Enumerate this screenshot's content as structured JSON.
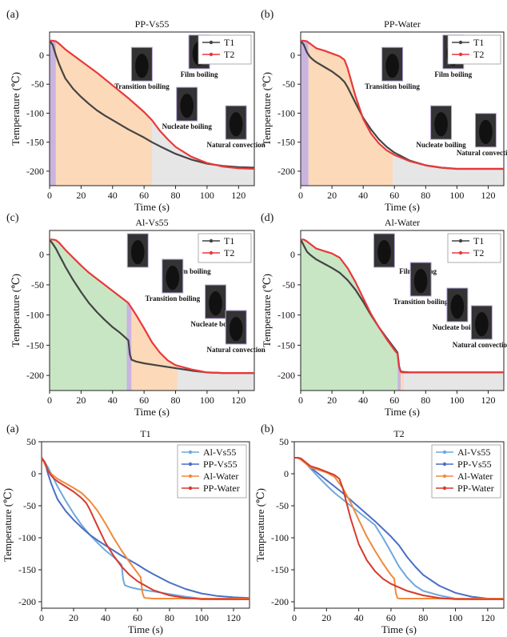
{
  "chart_data": [
    {
      "type": "line",
      "panel_label": "(a)",
      "title": "PP-Vs55",
      "xlabel": "Time (s)",
      "ylabel": "Temperature (℃)",
      "xlim": [
        0,
        130
      ],
      "ylim": [
        -225,
        40
      ],
      "xticks": [
        0,
        20,
        40,
        60,
        80,
        100,
        120
      ],
      "yticks": [
        0,
        -50,
        -100,
        -150,
        -200
      ],
      "legend_position": "top-right",
      "series": [
        {
          "name": "T1",
          "color": "#444444",
          "x": [
            0,
            2,
            4,
            6,
            8,
            10,
            15,
            20,
            25,
            30,
            35,
            40,
            50,
            60,
            65,
            70,
            80,
            90,
            100,
            110,
            120,
            130
          ],
          "y": [
            25,
            18,
            0,
            -15,
            -28,
            -40,
            -58,
            -72,
            -84,
            -95,
            -104,
            -112,
            -128,
            -142,
            -150,
            -157,
            -170,
            -180,
            -187,
            -191,
            -193,
            -194
          ]
        },
        {
          "name": "T2",
          "color": "#e8393a",
          "x": [
            0,
            2,
            4,
            6,
            8,
            10,
            20,
            30,
            40,
            50,
            60,
            65,
            70,
            75,
            80,
            90,
            100,
            110,
            120,
            130
          ],
          "y": [
            25,
            25,
            24,
            20,
            15,
            10,
            -10,
            -30,
            -52,
            -74,
            -98,
            -112,
            -130,
            -145,
            -158,
            -175,
            -186,
            -192,
            -195,
            -196
          ]
        }
      ],
      "regions": [
        {
          "from": 0,
          "to": 4,
          "color": "#c9b4e0"
        },
        {
          "from": 4,
          "to": 65,
          "color": "#fcd9b8"
        },
        {
          "from": 65,
          "to": 130,
          "color": "#e6e6e6"
        }
      ],
      "annotations": [
        "Transition boiling",
        "Film boiling",
        "Nucleate boiling",
        "Natural convection"
      ]
    },
    {
      "type": "line",
      "panel_label": "(b)",
      "title": "PP-Water",
      "xlabel": "Time (s)",
      "ylabel": "Temperature (℃)",
      "xlim": [
        0,
        130
      ],
      "ylim": [
        -225,
        40
      ],
      "xticks": [
        0,
        20,
        40,
        60,
        80,
        100,
        120
      ],
      "yticks": [
        0,
        -50,
        -100,
        -150,
        -200
      ],
      "legend_position": "top-right",
      "series": [
        {
          "name": "T1",
          "color": "#444444",
          "x": [
            0,
            2,
            4,
            6,
            8,
            10,
            15,
            20,
            25,
            28,
            30,
            35,
            40,
            45,
            50,
            55,
            60,
            70,
            80,
            90,
            100,
            110,
            130
          ],
          "y": [
            25,
            18,
            5,
            -3,
            -8,
            -12,
            -20,
            -28,
            -38,
            -46,
            -55,
            -82,
            -108,
            -128,
            -145,
            -158,
            -168,
            -182,
            -190,
            -194,
            -196,
            -196,
            -196
          ]
        },
        {
          "name": "T2",
          "color": "#e8393a",
          "x": [
            0,
            2,
            4,
            6,
            8,
            10,
            15,
            20,
            25,
            28,
            30,
            35,
            40,
            45,
            50,
            55,
            60,
            70,
            80,
            90,
            100,
            110,
            130
          ],
          "y": [
            25,
            25,
            24,
            20,
            16,
            12,
            8,
            3,
            -2,
            -8,
            -22,
            -70,
            -110,
            -135,
            -152,
            -164,
            -172,
            -183,
            -190,
            -194,
            -196,
            -196,
            -196
          ]
        }
      ],
      "regions": [
        {
          "from": 0,
          "to": 5,
          "color": "#c9b4e0"
        },
        {
          "from": 5,
          "to": 59,
          "color": "#fcd9b8"
        },
        {
          "from": 59,
          "to": 130,
          "color": "#e6e6e6"
        }
      ],
      "annotations": [
        "Transition boiling",
        "Film boiling",
        "Nucleate boiling",
        "Natural convection"
      ]
    },
    {
      "type": "line",
      "panel_label": "(c)",
      "title": "Al-Vs55",
      "xlabel": "Time (s)",
      "ylabel": "Temperature (℃)",
      "xlim": [
        0,
        130
      ],
      "ylim": [
        -225,
        40
      ],
      "xticks": [
        0,
        20,
        40,
        60,
        80,
        100,
        120
      ],
      "yticks": [
        0,
        -50,
        -100,
        -150,
        -200
      ],
      "legend_position": "top-right",
      "series": [
        {
          "name": "T1",
          "color": "#444444",
          "x": [
            0,
            2,
            4,
            6,
            8,
            10,
            15,
            20,
            25,
            30,
            35,
            40,
            45,
            48,
            50,
            51,
            52,
            55,
            60,
            70,
            80,
            90,
            100,
            110,
            120,
            130
          ],
          "y": [
            25,
            18,
            10,
            0,
            -10,
            -20,
            -42,
            -62,
            -80,
            -95,
            -108,
            -120,
            -130,
            -137,
            -142,
            -165,
            -174,
            -177,
            -180,
            -184,
            -188,
            -192,
            -195,
            -196,
            -196,
            -196
          ]
        },
        {
          "name": "T2",
          "color": "#e8393a",
          "x": [
            0,
            2,
            4,
            6,
            8,
            10,
            15,
            20,
            25,
            30,
            35,
            40,
            45,
            50,
            55,
            60,
            65,
            70,
            75,
            80,
            90,
            100,
            110,
            120,
            130
          ],
          "y": [
            25,
            25,
            24,
            20,
            14,
            8,
            -5,
            -18,
            -30,
            -40,
            -50,
            -60,
            -70,
            -80,
            -100,
            -122,
            -145,
            -162,
            -175,
            -183,
            -190,
            -195,
            -196,
            -196,
            -196
          ]
        }
      ],
      "regions": [
        {
          "from": 0,
          "to": 49,
          "color": "#c8e6c4"
        },
        {
          "from": 49,
          "to": 52,
          "color": "#c9b4e0"
        },
        {
          "from": 52,
          "to": 81,
          "color": "#fcd9b8"
        },
        {
          "from": 81,
          "to": 130,
          "color": "#e6e6e6"
        }
      ],
      "annotations": [
        "Film boiling",
        "Transition boiling",
        "Nucleate boiling",
        "Natural convection"
      ]
    },
    {
      "type": "line",
      "panel_label": "(d)",
      "title": "Al-Water",
      "xlabel": "Time (s)",
      "ylabel": "Temperature (℃)",
      "xlim": [
        0,
        130
      ],
      "ylim": [
        -225,
        40
      ],
      "xticks": [
        0,
        20,
        40,
        60,
        80,
        100,
        120
      ],
      "yticks": [
        0,
        -50,
        -100,
        -150,
        -200
      ],
      "legend_position": "top-right",
      "series": [
        {
          "name": "T1",
          "color": "#444444",
          "x": [
            0,
            2,
            4,
            6,
            10,
            15,
            20,
            25,
            30,
            35,
            40,
            45,
            50,
            55,
            60,
            62,
            63,
            64,
            65,
            70,
            80,
            90,
            100,
            110,
            120,
            130
          ],
          "y": [
            25,
            15,
            5,
            0,
            -8,
            -15,
            -22,
            -30,
            -42,
            -58,
            -78,
            -100,
            -120,
            -138,
            -155,
            -162,
            -185,
            -193,
            -194,
            -195,
            -195,
            -195,
            -195,
            -195,
            -195,
            -195
          ]
        },
        {
          "name": "T2",
          "color": "#e8393a",
          "x": [
            0,
            2,
            4,
            6,
            10,
            15,
            20,
            25,
            30,
            35,
            40,
            45,
            50,
            55,
            60,
            62,
            63,
            64,
            65,
            70,
            80,
            90,
            100,
            110,
            120,
            130
          ],
          "y": [
            25,
            25,
            22,
            18,
            10,
            6,
            2,
            -5,
            -22,
            -45,
            -72,
            -98,
            -120,
            -140,
            -158,
            -164,
            -186,
            -194,
            -195,
            -195,
            -195,
            -195,
            -195,
            -195,
            -195,
            -195
          ]
        }
      ],
      "regions": [
        {
          "from": 0,
          "to": 62,
          "color": "#c8e6c4"
        },
        {
          "from": 62,
          "to": 64,
          "color": "#c9b4e0"
        },
        {
          "from": 64,
          "to": 66,
          "color": "#fcd9b8"
        },
        {
          "from": 66,
          "to": 130,
          "color": "#e6e6e6"
        }
      ],
      "annotations": [
        "Film boiling",
        "Transition boiling",
        "Nucleate boiling",
        "Natural convection"
      ]
    },
    {
      "type": "line",
      "panel_label": "(a)",
      "title": "T1",
      "xlabel": "Time (s)",
      "ylabel": "Temperature (℃)",
      "xlim": [
        0,
        130
      ],
      "ylim": [
        -210,
        50
      ],
      "xticks": [
        0,
        20,
        40,
        60,
        80,
        100,
        120
      ],
      "yticks": [
        50,
        0,
        -50,
        -100,
        -150,
        -200
      ],
      "legend_position": "top-right",
      "series": [
        {
          "name": "Al-Vs55",
          "color": "#6fa8dc",
          "x": [
            0,
            2,
            4,
            6,
            8,
            10,
            15,
            20,
            25,
            30,
            35,
            40,
            45,
            48,
            50,
            51,
            52,
            55,
            60,
            70,
            80,
            90,
            100,
            110,
            120,
            130
          ],
          "y": [
            25,
            18,
            10,
            0,
            -10,
            -20,
            -42,
            -62,
            -80,
            -95,
            -108,
            -120,
            -130,
            -137,
            -142,
            -165,
            -174,
            -177,
            -180,
            -184,
            -188,
            -192,
            -195,
            -196,
            -196,
            -196
          ]
        },
        {
          "name": "PP-Vs55",
          "color": "#4a6fc4",
          "x": [
            0,
            2,
            4,
            6,
            8,
            10,
            15,
            20,
            25,
            30,
            35,
            40,
            50,
            60,
            65,
            70,
            80,
            90,
            100,
            110,
            120,
            130
          ],
          "y": [
            25,
            18,
            0,
            -15,
            -28,
            -40,
            -58,
            -72,
            -84,
            -95,
            -104,
            -112,
            -128,
            -142,
            -150,
            -157,
            -170,
            -180,
            -187,
            -191,
            -193,
            -194
          ]
        },
        {
          "name": "Al-Water",
          "color": "#f08a3c",
          "x": [
            0,
            2,
            4,
            6,
            10,
            15,
            20,
            25,
            30,
            35,
            40,
            45,
            50,
            55,
            60,
            62,
            63,
            64,
            65,
            70,
            80,
            90,
            100,
            110,
            120,
            130
          ],
          "y": [
            25,
            15,
            5,
            0,
            -8,
            -15,
            -22,
            -30,
            -42,
            -58,
            -78,
            -100,
            -120,
            -138,
            -155,
            -162,
            -185,
            -193,
            -194,
            -195,
            -195,
            -195,
            -195,
            -195,
            -195,
            -195
          ]
        },
        {
          "name": "PP-Water",
          "color": "#d63a2e",
          "x": [
            0,
            2,
            4,
            6,
            8,
            10,
            15,
            20,
            25,
            28,
            30,
            35,
            40,
            45,
            50,
            55,
            60,
            70,
            80,
            90,
            100,
            110,
            130
          ],
          "y": [
            25,
            18,
            5,
            -3,
            -8,
            -12,
            -20,
            -28,
            -38,
            -46,
            -55,
            -82,
            -108,
            -128,
            -145,
            -158,
            -168,
            -182,
            -190,
            -194,
            -196,
            -196,
            -196
          ]
        }
      ]
    },
    {
      "type": "line",
      "panel_label": "(b)",
      "title": "T2",
      "xlabel": "Time (s)",
      "ylabel": "Temperature (℃)",
      "xlim": [
        0,
        130
      ],
      "ylim": [
        -210,
        50
      ],
      "xticks": [
        0,
        20,
        40,
        60,
        80,
        100,
        120
      ],
      "yticks": [
        50,
        0,
        -50,
        -100,
        -150,
        -200
      ],
      "legend_position": "top-right",
      "series": [
        {
          "name": "Al-Vs55",
          "color": "#6fa8dc",
          "x": [
            0,
            2,
            4,
            6,
            8,
            10,
            15,
            20,
            25,
            30,
            35,
            40,
            45,
            50,
            55,
            60,
            65,
            70,
            75,
            80,
            90,
            100,
            110,
            120,
            130
          ],
          "y": [
            25,
            25,
            24,
            20,
            14,
            8,
            -5,
            -18,
            -30,
            -40,
            -50,
            -60,
            -70,
            -80,
            -100,
            -122,
            -145,
            -162,
            -175,
            -183,
            -190,
            -195,
            -196,
            -196,
            -196
          ]
        },
        {
          "name": "PP-Vs55",
          "color": "#4a6fc4",
          "x": [
            0,
            2,
            4,
            6,
            8,
            10,
            20,
            30,
            40,
            50,
            60,
            65,
            70,
            75,
            80,
            90,
            100,
            110,
            120,
            130
          ],
          "y": [
            25,
            25,
            24,
            20,
            15,
            10,
            -10,
            -30,
            -52,
            -74,
            -98,
            -112,
            -130,
            -145,
            -158,
            -175,
            -186,
            -192,
            -195,
            -196
          ]
        },
        {
          "name": "Al-Water",
          "color": "#f08a3c",
          "x": [
            0,
            2,
            4,
            6,
            10,
            15,
            20,
            25,
            30,
            35,
            40,
            45,
            50,
            55,
            60,
            62,
            63,
            64,
            65,
            70,
            80,
            90,
            100,
            110,
            120,
            130
          ],
          "y": [
            25,
            25,
            22,
            18,
            10,
            6,
            2,
            -5,
            -22,
            -45,
            -72,
            -98,
            -120,
            -140,
            -158,
            -164,
            -186,
            -194,
            -195,
            -195,
            -195,
            -195,
            -195,
            -195,
            -195,
            -195
          ]
        },
        {
          "name": "PP-Water",
          "color": "#d63a2e",
          "x": [
            0,
            2,
            4,
            6,
            8,
            10,
            15,
            20,
            25,
            28,
            30,
            35,
            40,
            45,
            50,
            55,
            60,
            70,
            80,
            90,
            100,
            110,
            130
          ],
          "y": [
            25,
            25,
            24,
            20,
            16,
            12,
            8,
            3,
            -2,
            -8,
            -22,
            -70,
            -110,
            -135,
            -152,
            -164,
            -172,
            -183,
            -190,
            -194,
            -196,
            -196,
            -196
          ]
        }
      ]
    }
  ]
}
